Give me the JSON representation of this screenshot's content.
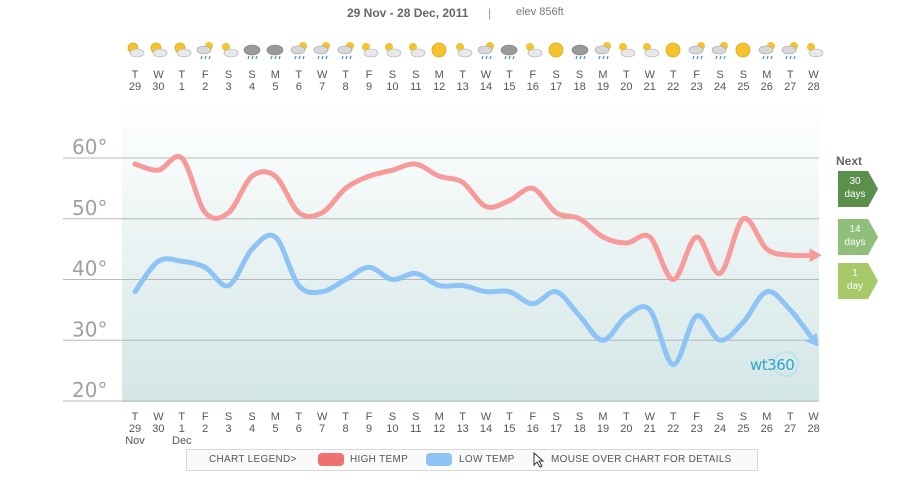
{
  "header": {
    "date_range": "29 Nov - 28 Dec, 2011",
    "separator": "|",
    "elevation": "elev 856ft"
  },
  "days": [
    {
      "dow": "T",
      "day": "29",
      "icon": "partly-sunny-icon",
      "month": "Nov"
    },
    {
      "dow": "W",
      "day": "30",
      "icon": "partly-sunny-icon",
      "month": ""
    },
    {
      "dow": "T",
      "day": "1",
      "icon": "partly-sunny-icon",
      "month": "Dec"
    },
    {
      "dow": "F",
      "day": "2",
      "icon": "rain-icon",
      "month": ""
    },
    {
      "dow": "S",
      "day": "3",
      "icon": "partly-cloudy-icon",
      "month": ""
    },
    {
      "dow": "S",
      "day": "4",
      "icon": "rain-cloud-icon",
      "month": ""
    },
    {
      "dow": "M",
      "day": "5",
      "icon": "rain-cloud-icon",
      "month": ""
    },
    {
      "dow": "T",
      "day": "6",
      "icon": "rain-icon",
      "month": ""
    },
    {
      "dow": "W",
      "day": "7",
      "icon": "rain-icon",
      "month": ""
    },
    {
      "dow": "T",
      "day": "8",
      "icon": "rain-icon",
      "month": ""
    },
    {
      "dow": "F",
      "day": "9",
      "icon": "partly-cloudy-icon",
      "month": ""
    },
    {
      "dow": "S",
      "day": "10",
      "icon": "partly-cloudy-icon",
      "month": ""
    },
    {
      "dow": "S",
      "day": "11",
      "icon": "partly-cloudy-icon",
      "month": ""
    },
    {
      "dow": "M",
      "day": "12",
      "icon": "sunny-icon",
      "month": ""
    },
    {
      "dow": "T",
      "day": "13",
      "icon": "partly-cloudy-icon",
      "month": ""
    },
    {
      "dow": "W",
      "day": "14",
      "icon": "rain-icon",
      "month": ""
    },
    {
      "dow": "T",
      "day": "15",
      "icon": "rain-cloud-icon",
      "month": ""
    },
    {
      "dow": "F",
      "day": "16",
      "icon": "partly-cloudy-icon",
      "month": ""
    },
    {
      "dow": "S",
      "day": "17",
      "icon": "sunny-icon",
      "month": ""
    },
    {
      "dow": "S",
      "day": "18",
      "icon": "rain-cloud-icon",
      "month": ""
    },
    {
      "dow": "M",
      "day": "19",
      "icon": "rain-icon",
      "month": ""
    },
    {
      "dow": "T",
      "day": "20",
      "icon": "partly-cloudy-icon",
      "month": ""
    },
    {
      "dow": "W",
      "day": "21",
      "icon": "partly-cloudy-icon",
      "month": ""
    },
    {
      "dow": "T",
      "day": "22",
      "icon": "sunny-icon",
      "month": ""
    },
    {
      "dow": "F",
      "day": "23",
      "icon": "rain-icon",
      "month": ""
    },
    {
      "dow": "S",
      "day": "24",
      "icon": "rain-icon",
      "month": ""
    },
    {
      "dow": "S",
      "day": "25",
      "icon": "sunny-icon",
      "month": ""
    },
    {
      "dow": "M",
      "day": "26",
      "icon": "rain-icon",
      "month": ""
    },
    {
      "dow": "T",
      "day": "27",
      "icon": "rain-icon",
      "month": ""
    },
    {
      "dow": "W",
      "day": "28",
      "icon": "partly-cloudy-icon",
      "month": ""
    }
  ],
  "chart_data": {
    "type": "line",
    "title": "29 Nov - 28 Dec, 2011",
    "xlabel": "",
    "ylabel": "",
    "ylim": [
      17,
      70
    ],
    "yticks": [
      "60°",
      "50°",
      "40°",
      "30°",
      "20°"
    ],
    "ytick_values": [
      60,
      50,
      40,
      30,
      20
    ],
    "categories": [
      "29",
      "30",
      "1",
      "2",
      "3",
      "4",
      "5",
      "6",
      "7",
      "8",
      "9",
      "10",
      "11",
      "12",
      "13",
      "14",
      "15",
      "16",
      "17",
      "18",
      "19",
      "20",
      "21",
      "22",
      "23",
      "24",
      "25",
      "26",
      "27",
      "28"
    ],
    "series": [
      {
        "name": "HIGH TEMP",
        "color": "#f79a9a",
        "values": [
          59,
          58,
          60,
          51,
          51,
          57,
          57,
          51,
          51,
          55,
          57,
          58,
          59,
          57,
          56,
          52,
          53,
          55,
          51,
          50,
          47,
          46,
          47,
          40,
          47,
          41,
          50,
          45,
          44,
          44
        ]
      },
      {
        "name": "LOW TEMP",
        "color": "#8ec3f5",
        "values": [
          38,
          43,
          43,
          42,
          39,
          45,
          47,
          39,
          38,
          40,
          42,
          40,
          41,
          39,
          39,
          38,
          38,
          36,
          38,
          34,
          30,
          34,
          35,
          26,
          34,
          30,
          33,
          38,
          35,
          30
        ]
      }
    ]
  },
  "next": {
    "title": "Next",
    "buttons": [
      {
        "line1": "30",
        "line2": "days",
        "color": "#5a8f4c"
      },
      {
        "line1": "14",
        "line2": "days",
        "color": "#8fbf7a"
      },
      {
        "line1": "1",
        "line2": "day",
        "color": "#a6c96a"
      }
    ]
  },
  "logo": {
    "text": "wt360"
  },
  "legend": {
    "label": "CHART LEGEND>",
    "high": "HIGH TEMP",
    "low": "LOW TEMP",
    "hint": "MOUSE OVER CHART FOR DETAILS",
    "high_color": "#f07070",
    "low_color": "#8ec3f5"
  }
}
